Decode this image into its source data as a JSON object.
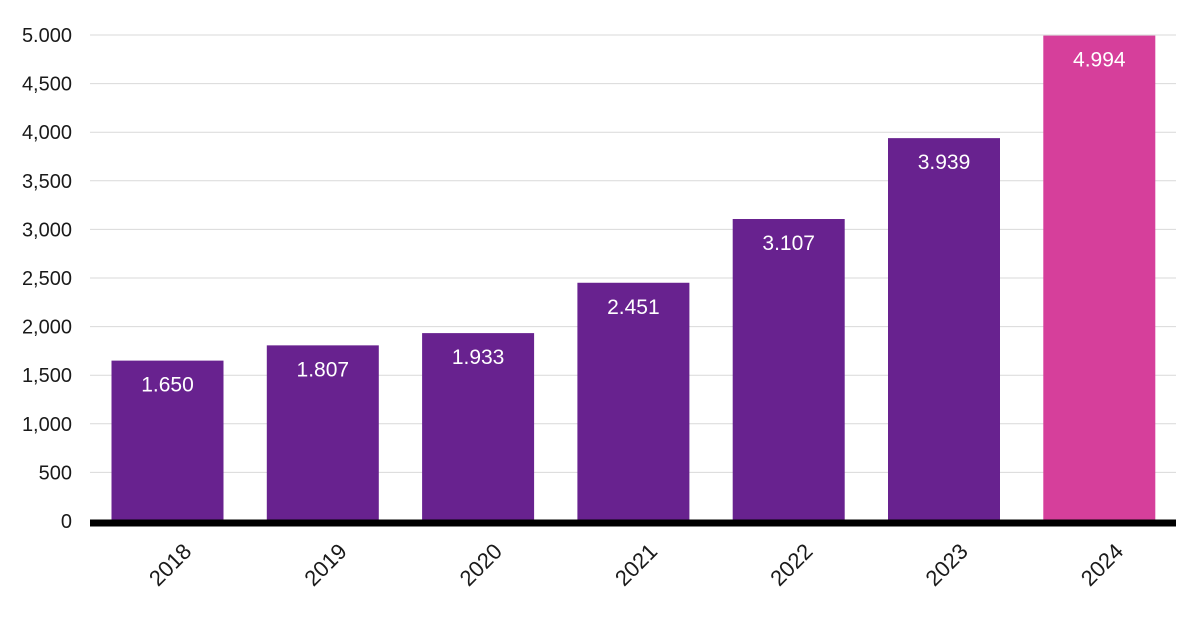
{
  "chart_data": {
    "type": "bar",
    "categories": [
      "2018",
      "2019",
      "2020",
      "2021",
      "2022",
      "2023",
      "2024"
    ],
    "values": [
      1650,
      1807,
      1933,
      2451,
      3107,
      3939,
      4994
    ],
    "data_labels": [
      "1.650",
      "1.807",
      "1.933",
      "2.451",
      "3.107",
      "3.939",
      "4.994"
    ],
    "ylim": [
      0,
      5000
    ],
    "yticks": [
      0,
      500,
      1000,
      1500,
      2000,
      2500,
      3000,
      3500,
      4000,
      4500,
      5000
    ],
    "ytick_labels": [
      "0",
      "500",
      "1,000",
      "1,500",
      "2,000",
      "2,500",
      "3,000",
      "3,500",
      "4,000",
      "4,500",
      "5.000"
    ],
    "grid": true,
    "colors": {
      "bar": "#68228f",
      "highlight": "#d63f9b",
      "highlight_category": "2024"
    }
  }
}
